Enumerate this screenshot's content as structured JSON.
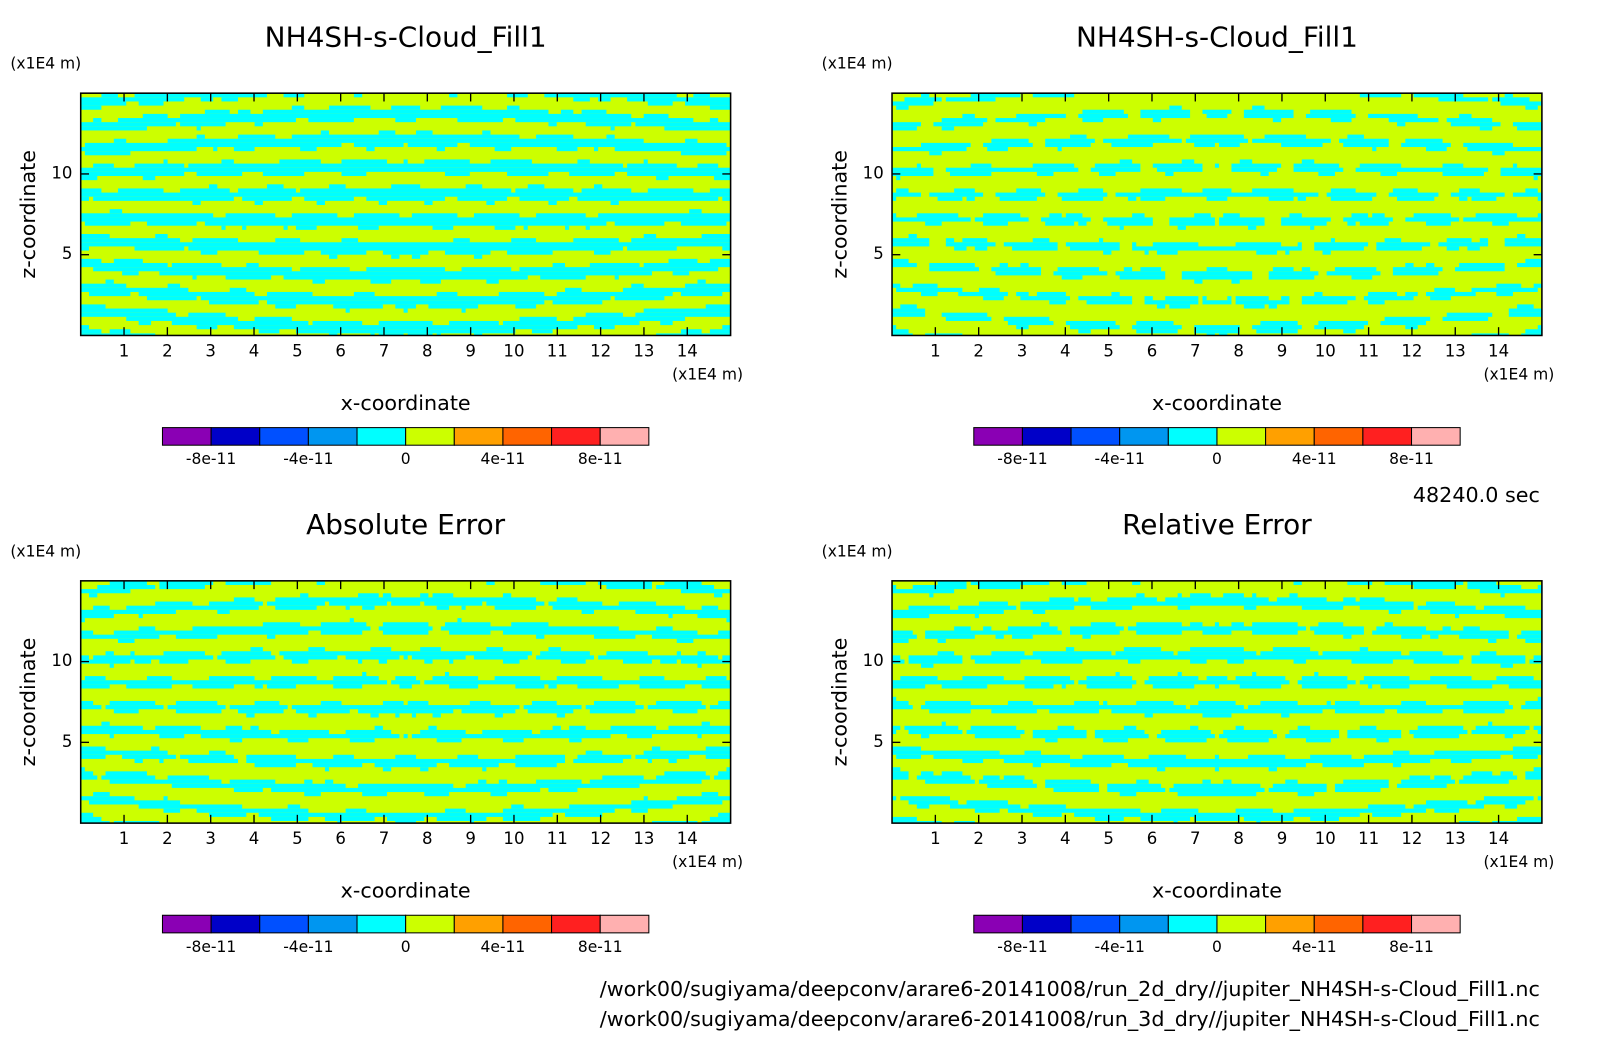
{
  "chart_data": [
    {
      "type": "contour",
      "title": "NH4SH-s-Cloud_Fill1",
      "xlabel": "x-coordinate",
      "ylabel": "z-coordinate",
      "xunit": "(x1E4 m)",
      "yunit": "(x1E4 m)",
      "xlim": [
        0,
        15
      ],
      "ylim": [
        0,
        15
      ],
      "xticks": [
        1,
        2,
        3,
        4,
        5,
        6,
        7,
        8,
        9,
        10,
        11,
        12,
        13,
        14
      ],
      "yticks": [
        5,
        10
      ],
      "colorbar": {
        "levels": [
          -1e-10,
          -8e-11,
          -6e-11,
          -4e-11,
          -2e-11,
          0,
          2e-11,
          4e-11,
          6e-11,
          8e-11,
          1e-10
        ],
        "colors": [
          "#8a00b4",
          "#0000c8",
          "#0050ff",
          "#0096f0",
          "#00ffff",
          "#ccff00",
          "#ffa000",
          "#ff6400",
          "#ff2020",
          "#ffb0b0"
        ],
        "ticks": [
          -8e-11,
          -4e-11,
          0,
          4e-11,
          8e-11
        ]
      }
    },
    {
      "type": "contour",
      "title": "NH4SH-s-Cloud_Fill1",
      "xlabel": "x-coordinate",
      "ylabel": "z-coordinate",
      "xunit": "(x1E4 m)",
      "yunit": "(x1E4 m)",
      "xlim": [
        0,
        15
      ],
      "ylim": [
        0,
        15
      ],
      "xticks": [
        1,
        2,
        3,
        4,
        5,
        6,
        7,
        8,
        9,
        10,
        11,
        12,
        13,
        14
      ],
      "yticks": [
        5,
        10
      ],
      "colorbar": {
        "levels": [
          -1e-10,
          -8e-11,
          -6e-11,
          -4e-11,
          -2e-11,
          0,
          2e-11,
          4e-11,
          6e-11,
          8e-11,
          1e-10
        ],
        "colors": [
          "#8a00b4",
          "#0000c8",
          "#0050ff",
          "#0096f0",
          "#00ffff",
          "#ccff00",
          "#ffa000",
          "#ff6400",
          "#ff2020",
          "#ffb0b0"
        ],
        "ticks": [
          -8e-11,
          -4e-11,
          0,
          4e-11,
          8e-11
        ]
      }
    },
    {
      "type": "contour",
      "title": "Absolute Error",
      "xlabel": "x-coordinate",
      "ylabel": "z-coordinate",
      "xunit": "(x1E4 m)",
      "yunit": "(x1E4 m)",
      "xlim": [
        0,
        15
      ],
      "ylim": [
        0,
        15
      ],
      "xticks": [
        1,
        2,
        3,
        4,
        5,
        6,
        7,
        8,
        9,
        10,
        11,
        12,
        13,
        14
      ],
      "yticks": [
        5,
        10
      ],
      "colorbar": {
        "levels": [
          -1e-10,
          -8e-11,
          -6e-11,
          -4e-11,
          -2e-11,
          0,
          2e-11,
          4e-11,
          6e-11,
          8e-11,
          1e-10
        ],
        "colors": [
          "#8a00b4",
          "#0000c8",
          "#0050ff",
          "#0096f0",
          "#00ffff",
          "#ccff00",
          "#ffa000",
          "#ff6400",
          "#ff2020",
          "#ffb0b0"
        ],
        "ticks": [
          -8e-11,
          -4e-11,
          0,
          4e-11,
          8e-11
        ]
      }
    },
    {
      "type": "contour",
      "title": "Relative Error",
      "xlabel": "x-coordinate",
      "ylabel": "z-coordinate",
      "xunit": "(x1E4 m)",
      "yunit": "(x1E4 m)",
      "xlim": [
        0,
        15
      ],
      "ylim": [
        0,
        15
      ],
      "xticks": [
        1,
        2,
        3,
        4,
        5,
        6,
        7,
        8,
        9,
        10,
        11,
        12,
        13,
        14
      ],
      "yticks": [
        5,
        10
      ],
      "colorbar": {
        "levels": [
          -1e-10,
          -8e-11,
          -6e-11,
          -4e-11,
          -2e-11,
          0,
          2e-11,
          4e-11,
          6e-11,
          8e-11,
          1e-10
        ],
        "colors": [
          "#8a00b4",
          "#0000c8",
          "#0050ff",
          "#0096f0",
          "#00ffff",
          "#ccff00",
          "#ffa000",
          "#ff6400",
          "#ff2020",
          "#ffb0b0"
        ],
        "ticks": [
          -8e-11,
          -4e-11,
          0,
          4e-11,
          8e-11
        ]
      }
    }
  ],
  "time_label": "48240.0 sec",
  "files": [
    "/work00/sugiyama/deepconv/arare6-20141008/run_2d_dry//jupiter_NH4SH-s-Cloud_Fill1.nc",
    "/work00/sugiyama/deepconv/arare6-20141008/run_3d_dry//jupiter_NH4SH-s-Cloud_Fill1.nc"
  ]
}
